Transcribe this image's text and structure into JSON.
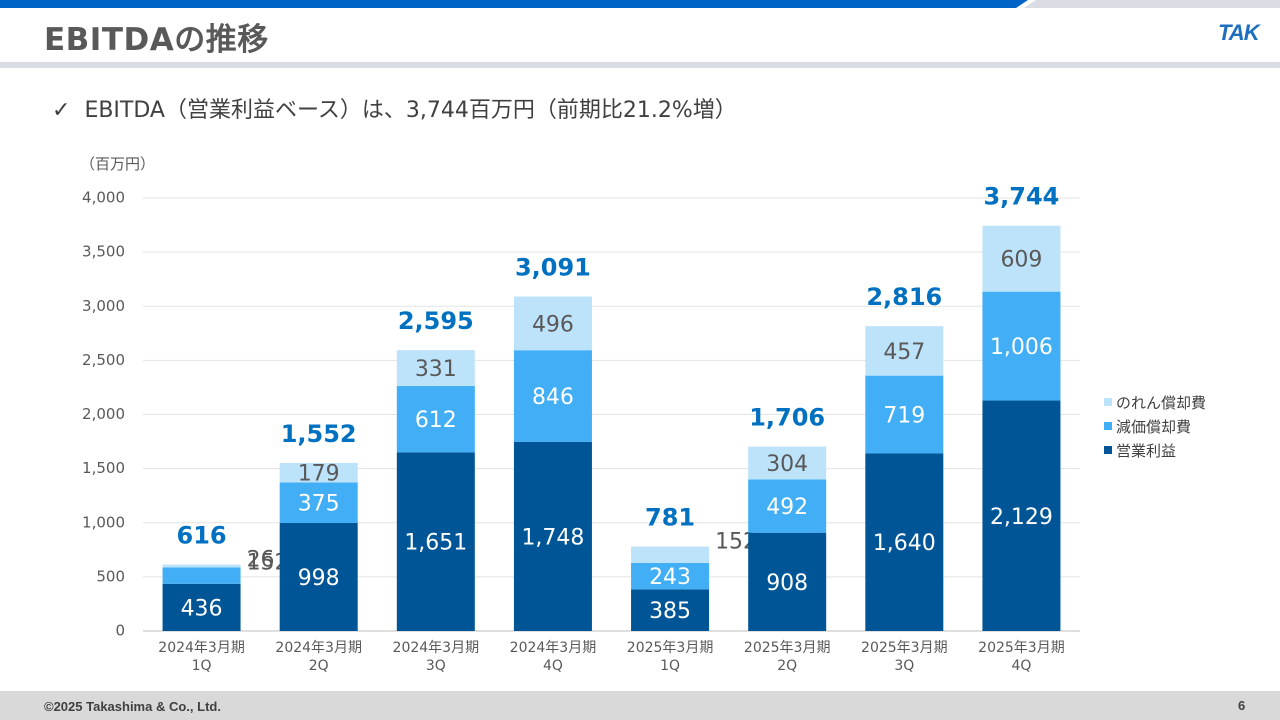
{
  "header": {
    "title": "EBITDAの推移",
    "logo_text": "TAK",
    "colors": {
      "bar_main": "#0063c6",
      "bar_light": "#d9dde3"
    }
  },
  "summary": {
    "check_icon": "check-icon",
    "text": "EBITDA（営業利益ベース）は、3,744百万円（前期比21.2%増）"
  },
  "footer": {
    "copyright": "©2025 Takashima & Co., Ltd.",
    "page_number": "6"
  },
  "chart_data": {
    "type": "bar",
    "stacked": true,
    "unit_label": "（百万円）",
    "ylim": [
      0,
      4000
    ],
    "yticks": [
      0,
      500,
      1000,
      1500,
      2000,
      2500,
      3000,
      3500,
      4000
    ],
    "ytick_labels": [
      "0",
      "500",
      "1,000",
      "1,500",
      "2,000",
      "2,500",
      "3,000",
      "3,500",
      "4,000"
    ],
    "grid": true,
    "legend_position": "right",
    "categories": [
      [
        "2024年3月期",
        "1Q"
      ],
      [
        "2024年3月期",
        "2Q"
      ],
      [
        "2024年3月期",
        "3Q"
      ],
      [
        "2024年3月期",
        "4Q"
      ],
      [
        "2025年3月期",
        "1Q"
      ],
      [
        "2025年3月期",
        "2Q"
      ],
      [
        "2025年3月期",
        "3Q"
      ],
      [
        "2025年3月期",
        "4Q"
      ]
    ],
    "series": [
      {
        "name": "営業利益",
        "color": "#005596",
        "label_color": "#ffffff",
        "values": [
          436,
          998,
          1651,
          1748,
          385,
          908,
          1640,
          2129
        ],
        "labels": [
          "436",
          "998",
          "1,651",
          "1,748",
          "385",
          "908",
          "1,640",
          "2,129"
        ]
      },
      {
        "name": "減価償却費",
        "color": "#41aef5",
        "label_color": "#ffffff",
        "values": [
          152,
          375,
          612,
          846,
          243,
          492,
          719,
          1006
        ],
        "labels": [
          "152",
          "375",
          "612",
          "846",
          "243",
          "492",
          "719",
          "1,006"
        ]
      },
      {
        "name": "のれん償却費",
        "color": "#bde3fb",
        "label_color": "#595959",
        "values": [
          26,
          179,
          331,
          496,
          152,
          304,
          457,
          609
        ],
        "labels": [
          "26",
          "179",
          "331",
          "496",
          "152",
          "304",
          "457",
          "609"
        ]
      }
    ],
    "totals": [
      616,
      1552,
      2595,
      3091,
      781,
      1706,
      2816,
      3744
    ],
    "total_labels": [
      "616",
      "1,552",
      "2,595",
      "3,091",
      "781",
      "1,706",
      "2,816",
      "3,744"
    ],
    "total_color": "#0070c0",
    "legend_order": [
      "のれん償却費",
      "減価償却費",
      "営業利益"
    ]
  }
}
